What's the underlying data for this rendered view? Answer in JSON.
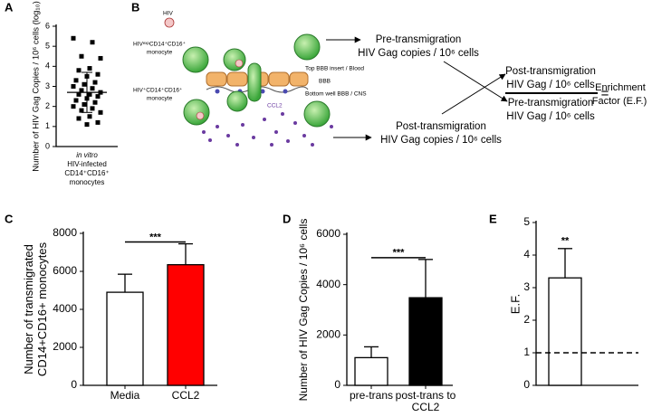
{
  "chart_data": [
    {
      "type": "dot",
      "panel": "A",
      "ylabel": [
        "Number of HIV Gag Copies / 10⁶ cells (log₁₀)"
      ],
      "xlabel": [
        "in vitro",
        "HIV-infected",
        "CD14⁺CD16⁺",
        "monocytes"
      ],
      "values": [
        5.4,
        5.2,
        4.5,
        4.4,
        3.9,
        3.8,
        3.6,
        3.5,
        3.3,
        3.2,
        3.1,
        3.0,
        2.9,
        2.8,
        2.7,
        2.6,
        2.6,
        2.5,
        2.4,
        2.3,
        2.2,
        2.1,
        2.0,
        1.9,
        1.8,
        1.7,
        1.5,
        1.4,
        1.2,
        1.1
      ],
      "mean": 2.7,
      "sd": 1.0,
      "color": "#000000",
      "ylim": [
        0,
        6
      ],
      "yticks": [
        0,
        1,
        2,
        3,
        4,
        5,
        6
      ]
    },
    {
      "type": "bar",
      "panel": "C",
      "ylabel": [
        "Number of transmigrated",
        "CD14+CD16+  monocytes"
      ],
      "categories": [
        "Media",
        "CCL2"
      ],
      "values": [
        4900,
        6350
      ],
      "errors": [
        950,
        1100
      ],
      "colors": [
        "#ffffff",
        "#ff0000"
      ],
      "annotation": "***",
      "ylim": [
        0,
        8000
      ],
      "yticks": [
        0,
        2000,
        4000,
        6000,
        8000
      ]
    },
    {
      "type": "bar",
      "panel": "D",
      "ylabel": [
        "Number of HIV Gag Copies / 10⁶ cells"
      ],
      "categories": [
        "pre-trans",
        "post-trans to CCL2"
      ],
      "values": [
        1100,
        3480
      ],
      "errors": [
        430,
        1520
      ],
      "colors": [
        "#ffffff",
        "#000000"
      ],
      "annotation": "***",
      "ylim": [
        0,
        6000
      ],
      "yticks": [
        0,
        2000,
        4000,
        6000
      ]
    },
    {
      "type": "bar",
      "panel": "E",
      "ylabel": [
        "E.F."
      ],
      "categories": [
        null
      ],
      "values": [
        3.3
      ],
      "errors": [
        0.9
      ],
      "colors": [
        "#ffffff"
      ],
      "annotation": "**",
      "reference_line": 1,
      "ylim": [
        0,
        5
      ],
      "yticks": [
        0,
        1,
        2,
        3,
        4,
        5
      ]
    }
  ],
  "diagram": {
    "panel": "B",
    "virus": "HIV",
    "top_cell": [
      "HIVᵉˣᵖCD14⁺CD16⁺",
      "monocyte"
    ],
    "bottom_cell": [
      "HIV⁺CD14⁺CD16⁺",
      "monocyte"
    ],
    "layers": [
      "Top BBB insert / Blood",
      "BBB",
      "Bottom well BBB / CNS"
    ],
    "chemokine": "CCL2",
    "pre": [
      "Pre-transmigration",
      "HIV Gag copies / 10⁶ cells"
    ],
    "post": [
      "Post-transmigration",
      "HIV Gag copies / 10⁶ cells"
    ],
    "numerator": [
      "Post-transmigration",
      "HIV Gag / 10⁶ cells"
    ],
    "denominator": [
      "Pre-transmigration",
      "HIV Gag / 10⁶ cells"
    ],
    "equals": "=",
    "result": [
      "Enrichment",
      "Factor (E.F.)"
    ]
  }
}
